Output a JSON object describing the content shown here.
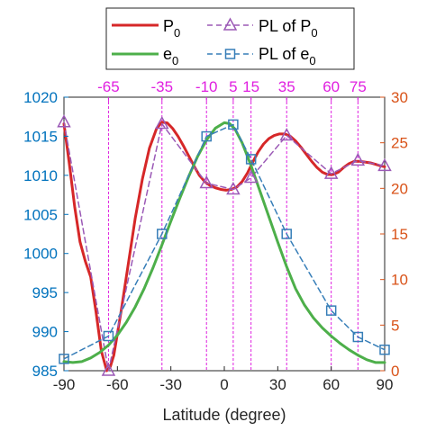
{
  "chart_data": {
    "type": "line",
    "xlabel": "Latitude (degree)",
    "xlim": [
      -90,
      90
    ],
    "x_ticks": [
      -90,
      -60,
      -30,
      0,
      30,
      60,
      90
    ],
    "y_left": {
      "label": "",
      "lim": [
        985,
        1020
      ],
      "ticks": [
        985,
        990,
        995,
        1000,
        1005,
        1010,
        1015,
        1020
      ],
      "color": "#0072bd"
    },
    "y_right": {
      "label": "",
      "lim": [
        0,
        30
      ],
      "ticks": [
        0,
        5,
        10,
        15,
        20,
        25,
        30
      ],
      "color": "#d95319"
    },
    "top_ticks": [
      "-65",
      "-35",
      "-10",
      "5",
      "15",
      "35",
      "60",
      "75"
    ],
    "top_tick_values": [
      -65,
      -35,
      -10,
      5,
      15,
      35,
      60,
      75
    ],
    "top_tick_color": "#e020e0",
    "grid": false,
    "legend_position": "top",
    "series": [
      {
        "name": "P0",
        "axis": "left",
        "color": "#d62728",
        "x": [
          -90,
          -87,
          -84,
          -81,
          -78,
          -75,
          -72,
          -69,
          -66,
          -64,
          -62,
          -58,
          -54,
          -50,
          -46,
          -42,
          -38,
          -35,
          -32,
          -29,
          -26,
          -23,
          -20,
          -17,
          -14,
          -11,
          -8,
          -5,
          -2,
          1,
          4,
          7,
          10,
          13,
          16,
          19,
          22,
          25,
          28,
          31,
          34,
          37,
          40,
          43,
          46,
          49,
          52,
          55,
          58,
          61,
          64,
          67,
          70,
          73,
          76,
          79,
          82,
          85,
          88,
          90
        ],
        "values": [
          1016.6,
          1011.5,
          1006.0,
          1001.5,
          999.0,
          997.0,
          992.5,
          987.5,
          985.0,
          985.5,
          987.0,
          992.5,
          998.5,
          1004.5,
          1009.5,
          1013.5,
          1016.0,
          1016.8,
          1016.7,
          1016.0,
          1015.0,
          1013.8,
          1012.5,
          1011.2,
          1010.0,
          1009.2,
          1008.7,
          1008.4,
          1008.2,
          1008.1,
          1008.2,
          1008.5,
          1009.2,
          1010.3,
          1011.7,
          1013.0,
          1014.0,
          1014.7,
          1015.1,
          1015.3,
          1015.3,
          1015.0,
          1014.4,
          1013.6,
          1012.7,
          1011.8,
          1011.0,
          1010.4,
          1010.1,
          1010.1,
          1010.4,
          1011.0,
          1011.5,
          1011.8,
          1011.8,
          1011.7,
          1011.6,
          1011.4,
          1011.2,
          1011.1
        ]
      },
      {
        "name": "PL of P0",
        "axis": "left",
        "color": "#9b59b6",
        "marker": "triangle",
        "x": [
          -90,
          -65,
          -35,
          -10,
          5,
          15,
          35,
          60,
          75,
          90
        ],
        "values": [
          1016.8,
          985.0,
          1016.6,
          1009.0,
          1008.2,
          1009.7,
          1015.1,
          1010.2,
          1011.9,
          1011.2
        ]
      },
      {
        "name": "e0",
        "axis": "right",
        "color": "#4daf4a",
        "x": [
          -90,
          -85,
          -80,
          -75,
          -70,
          -65,
          -60,
          -55,
          -50,
          -45,
          -40,
          -35,
          -30,
          -25,
          -20,
          -15,
          -10,
          -5,
          0,
          3,
          6,
          10,
          15,
          20,
          25,
          30,
          35,
          40,
          45,
          50,
          55,
          60,
          65,
          70,
          75,
          80,
          85,
          90
        ],
        "values": [
          1.0,
          0.9,
          1.0,
          1.4,
          2.0,
          2.8,
          3.9,
          5.3,
          7.0,
          9.0,
          11.3,
          13.8,
          16.4,
          18.9,
          21.3,
          23.5,
          25.3,
          26.6,
          27.2,
          27.1,
          26.5,
          25.0,
          22.5,
          19.7,
          16.9,
          14.1,
          11.4,
          9.0,
          7.2,
          5.8,
          4.7,
          3.8,
          3.0,
          2.3,
          1.7,
          1.2,
          0.9,
          0.9
        ]
      },
      {
        "name": "PL of e0",
        "axis": "right",
        "color": "#377eb8",
        "marker": "square",
        "x": [
          -90,
          -65,
          -35,
          -10,
          5,
          15,
          35,
          60,
          75,
          90
        ],
        "values": [
          1.3,
          3.8,
          15.0,
          25.7,
          27.0,
          23.2,
          15.0,
          6.6,
          3.7,
          2.3
        ]
      }
    ]
  },
  "legend": {
    "p0_label": "P",
    "p0_sub": "0",
    "pl_p0_label": "PL of P",
    "pl_p0_sub": "0",
    "e0_label": "e",
    "e0_sub": "0",
    "pl_e0_label": "PL of e",
    "pl_e0_sub": "0"
  }
}
